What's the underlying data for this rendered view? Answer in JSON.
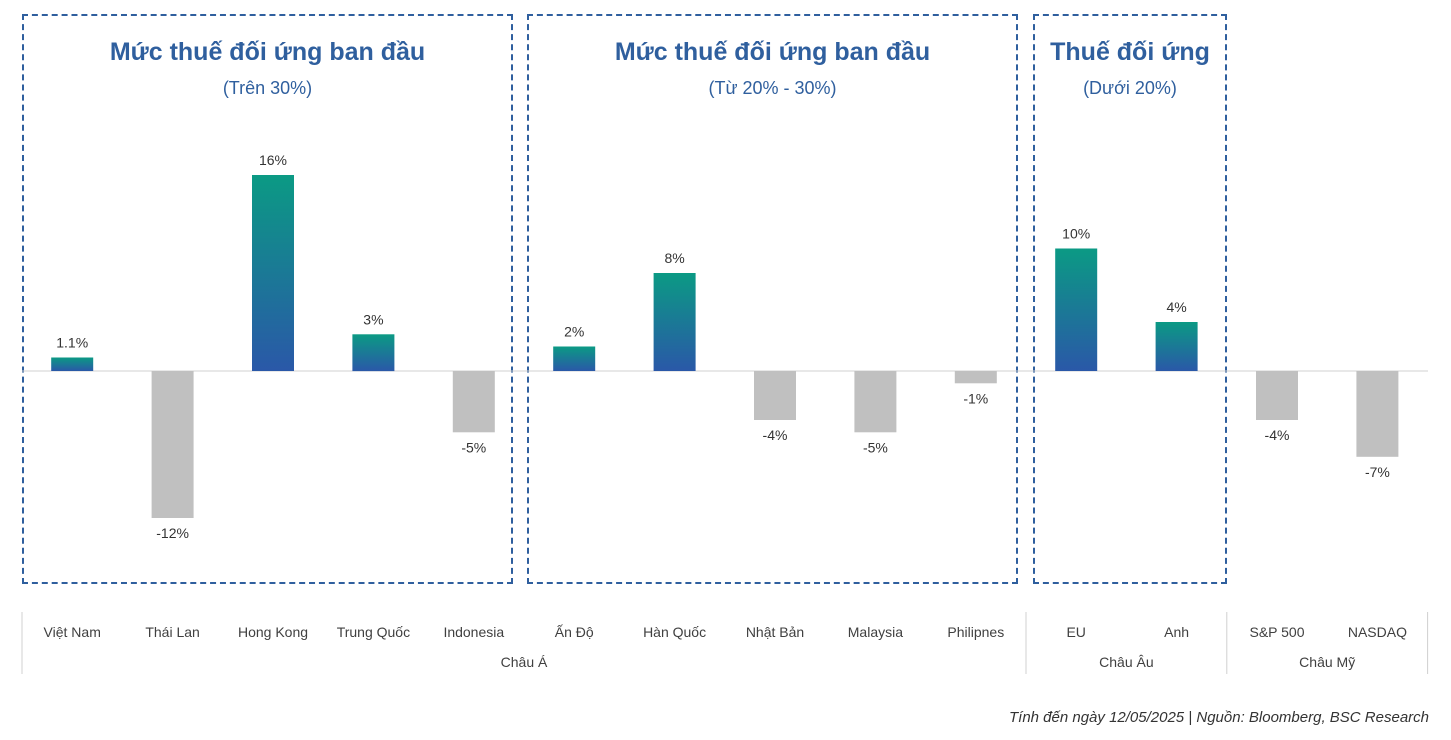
{
  "groups": [
    {
      "title": "Mức thuế đối ứng ban đầu",
      "subtitle": "(Trên 30%)"
    },
    {
      "title": "Mức thuế đối ứng ban đầu",
      "subtitle": "(Từ 20% - 30%)"
    },
    {
      "title": "Thuế đối ứng",
      "subtitle": "(Dưới 20%)"
    }
  ],
  "chart_data": {
    "type": "bar",
    "categories": [
      "Việt Nam",
      "Thái Lan",
      "Hong Kong",
      "Trung Quốc",
      "Indonesia",
      "Ấn Độ",
      "Hàn Quốc",
      "Nhật Bản",
      "Malaysia",
      "Philipnes",
      "EU",
      "Anh",
      "S&P 500",
      "NASDAQ"
    ],
    "values": [
      1.1,
      -12,
      16,
      3,
      -5,
      2,
      8,
      -4,
      -5,
      -1,
      10,
      4,
      -4,
      -7
    ],
    "value_labels": [
      "1.1%",
      "-12%",
      "16%",
      "3%",
      "-5%",
      "2%",
      "8%",
      "-4%",
      "-5%",
      "-1%",
      "10%",
      "4%",
      "-4%",
      "-7%"
    ],
    "regions": [
      {
        "label": "Châu Á",
        "count": 10
      },
      {
        "label": "Châu Âu",
        "count": 2
      },
      {
        "label": "Châu Mỹ",
        "count": 2
      }
    ],
    "colors": {
      "positive_top": "#0b9a84",
      "positive_bottom": "#2a58a8",
      "negative": "#c0c0c0"
    },
    "ylim": [
      -17,
      17
    ]
  },
  "footnote": "Tính đến ngày 12/05/2025 | Nguồn: Bloomberg, BSC Research"
}
